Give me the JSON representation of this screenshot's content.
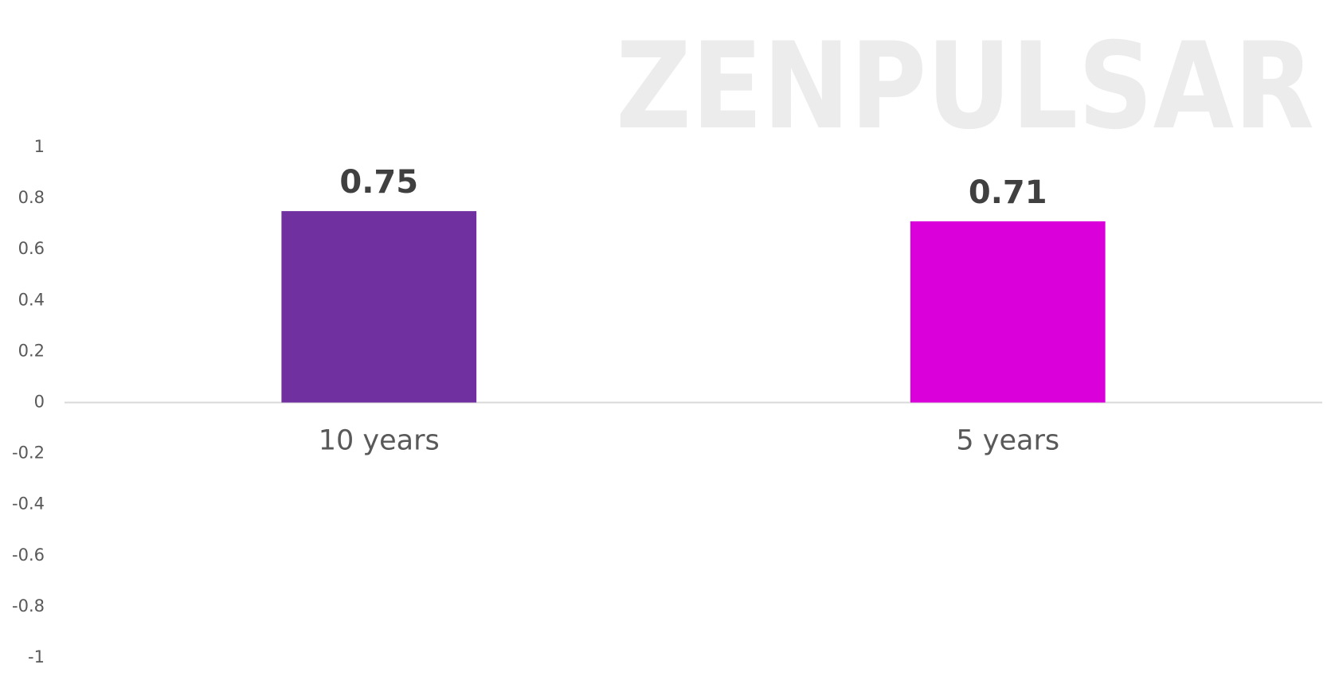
{
  "chart_data": {
    "type": "bar",
    "watermark": "ZENPULSAR",
    "categories": [
      "10 years",
      "5 years"
    ],
    "values": [
      0.75,
      0.71
    ],
    "colors": [
      "#7030a0",
      "#d900d9"
    ],
    "ylim": [
      -1,
      1
    ],
    "yticks": [
      -1,
      -0.8,
      -0.6,
      -0.4,
      -0.2,
      0,
      0.2,
      0.4,
      0.6,
      0.8,
      1
    ],
    "grid": false
  }
}
